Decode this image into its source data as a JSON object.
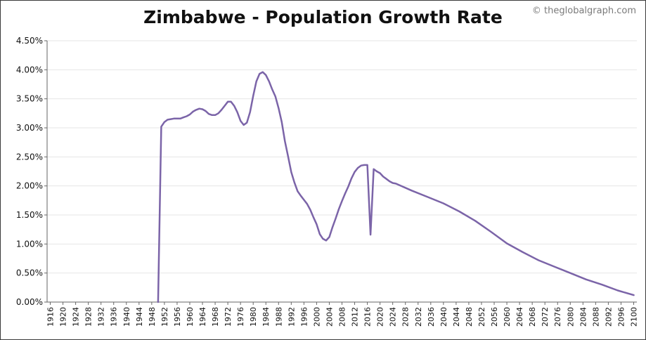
{
  "header": {
    "title": "Zimbabwe - Population Growth Rate",
    "watermark": "© theglobalgraph.com"
  },
  "chart_data": {
    "type": "line",
    "title": "Zimbabwe - Population Growth Rate",
    "xlabel": "",
    "ylabel": "",
    "xlim": [
      1915,
      2101
    ],
    "ylim": [
      0,
      4.5
    ],
    "y_ticks": [
      0,
      0.5,
      1.0,
      1.5,
      2.0,
      2.5,
      3.0,
      3.5,
      4.0,
      4.5
    ],
    "y_tick_labels": [
      "0.00%",
      "0.50%",
      "1.00%",
      "1.50%",
      "2.00%",
      "2.50%",
      "3.00%",
      "3.50%",
      "4.00%",
      "4.50%"
    ],
    "x_ticks": [
      1916,
      1920,
      1924,
      1928,
      1932,
      1936,
      1940,
      1944,
      1948,
      1952,
      1956,
      1960,
      1964,
      1968,
      1972,
      1976,
      1980,
      1984,
      1988,
      1992,
      1996,
      2000,
      2004,
      2008,
      2012,
      2016,
      2020,
      2024,
      2028,
      2032,
      2036,
      2040,
      2044,
      2048,
      2052,
      2056,
      2060,
      2064,
      2068,
      2072,
      2076,
      2080,
      2084,
      2088,
      2092,
      2096,
      2100
    ],
    "grid": true,
    "legend": "none",
    "line_color": "#7b64a8",
    "series": [
      {
        "x": [
          1950,
          1951,
          1952,
          1953,
          1954,
          1955,
          1956,
          1957,
          1958,
          1959,
          1960,
          1961,
          1962,
          1963,
          1964,
          1965,
          1966,
          1967,
          1968,
          1969,
          1970,
          1971,
          1972,
          1973,
          1974,
          1975,
          1976,
          1977,
          1978,
          1979,
          1980,
          1981,
          1982,
          1983,
          1984,
          1985,
          1986,
          1987,
          1988,
          1989,
          1990,
          1991,
          1992,
          1993,
          1994,
          1995,
          1996,
          1997,
          1998,
          1999,
          2000,
          2001,
          2002,
          2003,
          2004,
          2005,
          2006,
          2007,
          2008,
          2009,
          2010,
          2011,
          2012,
          2013,
          2014,
          2015,
          2016,
          2017,
          2018,
          2019,
          2020,
          2021,
          2022,
          2023,
          2024,
          2025,
          2030,
          2035,
          2040,
          2045,
          2050,
          2055,
          2060,
          2065,
          2070,
          2075,
          2080,
          2085,
          2090,
          2095,
          2100
        ],
        "values": [
          0,
          3.02,
          3.1,
          3.14,
          3.15,
          3.16,
          3.16,
          3.16,
          3.18,
          3.2,
          3.23,
          3.28,
          3.31,
          3.33,
          3.32,
          3.29,
          3.24,
          3.22,
          3.22,
          3.25,
          3.31,
          3.38,
          3.45,
          3.45,
          3.38,
          3.27,
          3.12,
          3.05,
          3.09,
          3.27,
          3.55,
          3.8,
          3.93,
          3.96,
          3.91,
          3.8,
          3.66,
          3.54,
          3.34,
          3.1,
          2.77,
          2.51,
          2.24,
          2.06,
          1.91,
          1.83,
          1.76,
          1.69,
          1.59,
          1.46,
          1.34,
          1.17,
          1.09,
          1.06,
          1.12,
          1.29,
          1.44,
          1.6,
          1.74,
          1.87,
          1.99,
          2.13,
          2.24,
          2.31,
          2.35,
          2.36,
          2.36,
          1.16,
          2.29,
          2.25,
          2.22,
          2.16,
          2.12,
          2.08,
          2.05,
          2.04,
          1.92,
          1.81,
          1.7,
          1.56,
          1.4,
          1.21,
          1.01,
          0.86,
          0.72,
          0.61,
          0.5,
          0.39,
          0.3,
          0.2,
          0.12
        ]
      }
    ]
  }
}
